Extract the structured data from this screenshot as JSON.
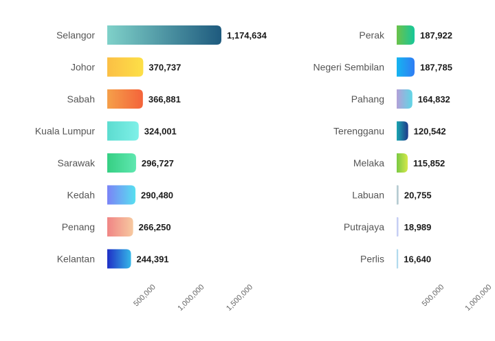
{
  "chart_data": [
    {
      "type": "bar",
      "orientation": "horizontal",
      "categories": [
        "Selangor",
        "Johor",
        "Sabah",
        "Kuala Lumpur",
        "Sarawak",
        "Kedah",
        "Penang",
        "Kelantan"
      ],
      "values": [
        1174634,
        370737,
        366881,
        324001,
        296727,
        290480,
        266250,
        244391
      ],
      "value_labels": [
        "1,174,634",
        "370,737",
        "366,881",
        "324,001",
        "296,727",
        "290,480",
        "266,250",
        "244,391"
      ],
      "xticks": [
        "500,000",
        "1,000,000",
        "1,500,000"
      ],
      "xlim": [
        0,
        1500000
      ],
      "grid": false,
      "colors": [
        [
          "#7fd1c9",
          "#1e5a7e"
        ],
        [
          "#fbbf45",
          "#fde047"
        ],
        [
          "#f5a04a",
          "#f4633a"
        ],
        [
          "#5cdcd0",
          "#7ff0e8"
        ],
        [
          "#36cf83",
          "#5fe7b0"
        ],
        [
          "#7b83f6",
          "#57dff0"
        ],
        [
          "#f08585",
          "#f7c9a0"
        ],
        [
          "#1f2fc6",
          "#35b7e8"
        ]
      ]
    },
    {
      "type": "bar",
      "orientation": "horizontal",
      "categories": [
        "Perak",
        "Negeri Sembilan",
        "Pahang",
        "Terengganu",
        "Melaka",
        "Labuan",
        "Putrajaya",
        "Perlis"
      ],
      "values": [
        187922,
        187785,
        164832,
        120542,
        115852,
        20755,
        18989,
        16640
      ],
      "value_labels": [
        "187,922",
        "187,785",
        "164,832",
        "120,542",
        "115,852",
        "20,755",
        "18,989",
        "16,640"
      ],
      "xticks": [
        "500,000",
        "1,000,000"
      ],
      "xlim": [
        0,
        1000000
      ],
      "grid": false,
      "colors": [
        [
          "#6cc24a",
          "#16c79a"
        ],
        [
          "#16b5f0",
          "#2f7cf4"
        ],
        [
          "#b3a0d8",
          "#5fd6e6"
        ],
        [
          "#1aa5b0",
          "#1e3a8a"
        ],
        [
          "#7ac943",
          "#d4e84a"
        ],
        [
          "#aac4cc",
          "#c8d8dc"
        ],
        [
          "#c0c8f0",
          "#d0d8f8"
        ],
        [
          "#9ed0e8",
          "#c8e6f4"
        ]
      ]
    }
  ]
}
